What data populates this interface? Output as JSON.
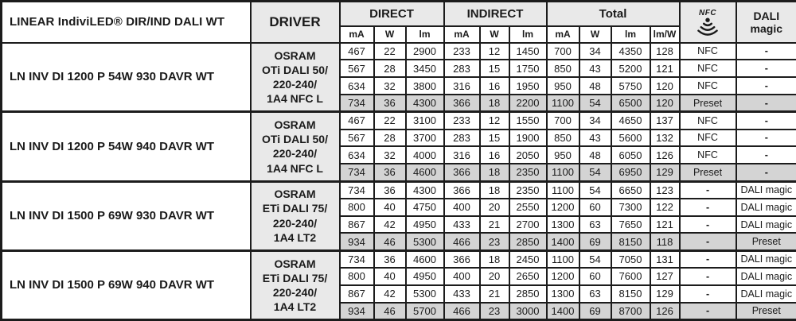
{
  "colors": {
    "header_bg": "#e9e9e9",
    "highlight_bg": "#d4d4d4",
    "border": "#1c1c1c",
    "text": "#1a1a1a"
  },
  "header": {
    "title": "LINEAR IndiviLED® DIR/IND DALI WT",
    "driver": "DRIVER",
    "groups": [
      "DIRECT",
      "INDIRECT",
      "Total"
    ],
    "units": [
      "mA",
      "W",
      "lm",
      "mA",
      "W",
      "lm",
      "mA",
      "W",
      "lm",
      "lm/W"
    ],
    "nfc_label": "NFC",
    "dali_magic": "DALI magic"
  },
  "groups": [
    {
      "product": "LN INV DI 1200 P 54W 930 DAVR WT",
      "driver_lines": [
        "OSRAM",
        "OTi DALI 50/",
        "220-240/",
        "1A4 NFC L"
      ],
      "rows": [
        {
          "values": [
            "467",
            "22",
            "2900",
            "233",
            "12",
            "1450",
            "700",
            "34",
            "4350",
            "128",
            "NFC",
            "-"
          ],
          "highlighted": false
        },
        {
          "values": [
            "567",
            "28",
            "3450",
            "283",
            "15",
            "1750",
            "850",
            "43",
            "5200",
            "121",
            "NFC",
            "-"
          ],
          "highlighted": false
        },
        {
          "values": [
            "634",
            "32",
            "3800",
            "316",
            "16",
            "1950",
            "950",
            "48",
            "5750",
            "120",
            "NFC",
            "-"
          ],
          "highlighted": false
        },
        {
          "values": [
            "734",
            "36",
            "4300",
            "366",
            "18",
            "2200",
            "1100",
            "54",
            "6500",
            "120",
            "Preset",
            "-"
          ],
          "highlighted": true
        }
      ]
    },
    {
      "product": "LN INV DI 1200 P 54W 940 DAVR WT",
      "driver_lines": [
        "OSRAM",
        "OTi DALI 50/",
        "220-240/",
        "1A4 NFC L"
      ],
      "rows": [
        {
          "values": [
            "467",
            "22",
            "3100",
            "233",
            "12",
            "1550",
            "700",
            "34",
            "4650",
            "137",
            "NFC",
            "-"
          ],
          "highlighted": false
        },
        {
          "values": [
            "567",
            "28",
            "3700",
            "283",
            "15",
            "1900",
            "850",
            "43",
            "5600",
            "132",
            "NFC",
            "-"
          ],
          "highlighted": false
        },
        {
          "values": [
            "634",
            "32",
            "4000",
            "316",
            "16",
            "2050",
            "950",
            "48",
            "6050",
            "126",
            "NFC",
            "-"
          ],
          "highlighted": false
        },
        {
          "values": [
            "734",
            "36",
            "4600",
            "366",
            "18",
            "2350",
            "1100",
            "54",
            "6950",
            "129",
            "Preset",
            "-"
          ],
          "highlighted": true
        }
      ]
    },
    {
      "product": "LN INV DI 1500 P 69W 930 DAVR WT",
      "driver_lines": [
        "OSRAM",
        "ETi DALI 75/",
        "220-240/",
        "1A4 LT2"
      ],
      "rows": [
        {
          "values": [
            "734",
            "36",
            "4300",
            "366",
            "18",
            "2350",
            "1100",
            "54",
            "6650",
            "123",
            "-",
            "DALI magic"
          ],
          "highlighted": false
        },
        {
          "values": [
            "800",
            "40",
            "4750",
            "400",
            "20",
            "2550",
            "1200",
            "60",
            "7300",
            "122",
            "-",
            "DALI magic"
          ],
          "highlighted": false
        },
        {
          "values": [
            "867",
            "42",
            "4950",
            "433",
            "21",
            "2700",
            "1300",
            "63",
            "7650",
            "121",
            "-",
            "DALI magic"
          ],
          "highlighted": false
        },
        {
          "values": [
            "934",
            "46",
            "5300",
            "466",
            "23",
            "2850",
            "1400",
            "69",
            "8150",
            "118",
            "-",
            "Preset"
          ],
          "highlighted": true
        }
      ]
    },
    {
      "product": "LN INV DI 1500 P 69W 940 DAVR WT",
      "driver_lines": [
        "OSRAM",
        "ETi DALI 75/",
        "220-240/",
        "1A4 LT2"
      ],
      "rows": [
        {
          "values": [
            "734",
            "36",
            "4600",
            "366",
            "18",
            "2450",
            "1100",
            "54",
            "7050",
            "131",
            "-",
            "DALI magic"
          ],
          "highlighted": false
        },
        {
          "values": [
            "800",
            "40",
            "4950",
            "400",
            "20",
            "2650",
            "1200",
            "60",
            "7600",
            "127",
            "-",
            "DALI magic"
          ],
          "highlighted": false
        },
        {
          "values": [
            "867",
            "42",
            "5300",
            "433",
            "21",
            "2850",
            "1300",
            "63",
            "8150",
            "129",
            "-",
            "DALI magic"
          ],
          "highlighted": false
        },
        {
          "values": [
            "934",
            "46",
            "5700",
            "466",
            "23",
            "3000",
            "1400",
            "69",
            "8700",
            "126",
            "-",
            "Preset"
          ],
          "highlighted": true
        }
      ]
    }
  ]
}
